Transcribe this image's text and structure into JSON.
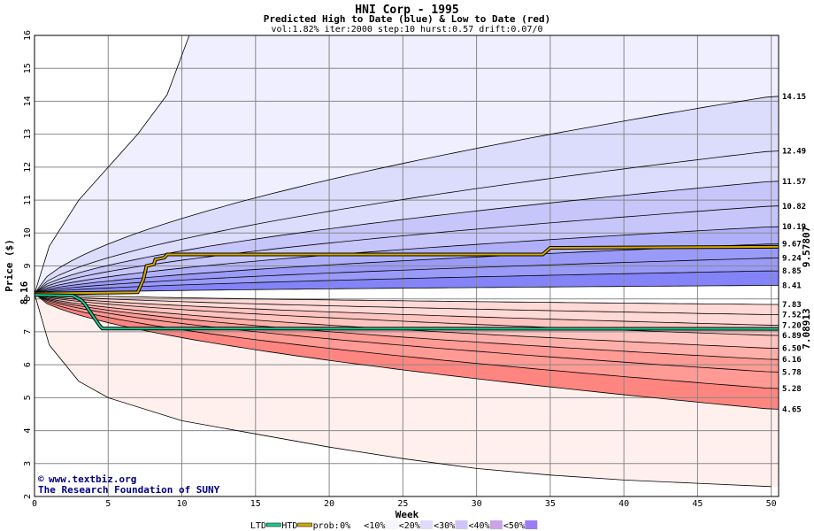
{
  "chart_data": {
    "type": "area",
    "title": "HNI Corp - 1995",
    "subtitle": "Predicted High to Date (blue) &  Low to Date (red)",
    "params": "vol:1.82% iter:2000 step:10 hurst:0.57 drift:0.07/0",
    "xlabel": "Week",
    "ylabel": "Price ($)",
    "xlim": [
      0,
      50.5
    ],
    "ylim": [
      2,
      16
    ],
    "x_ticks": [
      0,
      5,
      10,
      15,
      20,
      25,
      30,
      35,
      40,
      45,
      50
    ],
    "y_ticks": [
      2,
      3,
      4,
      5,
      6,
      7,
      8,
      9,
      10,
      11,
      12,
      13,
      14,
      15,
      16
    ],
    "grid": true,
    "start_price": "8.16",
    "high_bands_end": [
      14.15,
      12.49,
      11.57,
      10.82,
      10.19,
      9.67,
      9.24,
      8.85,
      8.41
    ],
    "low_bands_end": [
      7.83,
      7.52,
      7.2,
      6.89,
      6.5,
      6.16,
      5.78,
      5.28,
      4.65
    ],
    "high_end_labels": [
      "14.15",
      "12.49",
      "11.57",
      "10.82",
      "10.19",
      "9.67",
      "9.24",
      "8.85",
      "8.41"
    ],
    "low_end_labels": [
      "7.83",
      "7.52",
      "7.20",
      "6.89",
      "6.50",
      "6.16",
      "5.78",
      "5.28",
      "4.65"
    ],
    "outer_high": {
      "x": [
        0,
        1,
        3,
        5,
        7,
        9,
        10.5
      ],
      "y": [
        8.16,
        9.6,
        11.0,
        12.0,
        13.0,
        14.2,
        16.0
      ]
    },
    "outer_low": {
      "x": [
        0,
        1,
        3,
        5,
        10,
        15,
        20,
        25,
        30,
        35,
        40,
        45,
        50
      ],
      "y": [
        8.16,
        6.6,
        5.5,
        5.0,
        4.3,
        3.9,
        3.5,
        3.15,
        2.85,
        2.65,
        2.5,
        2.4,
        2.3
      ]
    },
    "series": [
      {
        "name": "HTD",
        "x": [
          0,
          7,
          7.4,
          7.6,
          8.1,
          8.2,
          8.8,
          9.0,
          34.5,
          35,
          50.5
        ],
        "y": [
          8.16,
          8.2,
          8.6,
          9.0,
          9.05,
          9.2,
          9.25,
          9.35,
          9.35,
          9.55,
          9.58
        ],
        "color": "#d4a800",
        "end_label": "9.57807"
      },
      {
        "name": "LTD",
        "x": [
          0,
          2.6,
          3.2,
          3.4,
          4.4,
          4.6,
          50.5
        ],
        "y": [
          8.12,
          8.1,
          7.95,
          7.85,
          7.2,
          7.1,
          7.09
        ],
        "color": "#20c890",
        "end_label": "7.08913"
      }
    ],
    "credits": [
      "www.textbiz.org",
      "The Research Foundation of SUNY"
    ],
    "legend": {
      "ltd": "LTD",
      "htd": "HTD",
      "prob": "prob:",
      "items": [
        "0%",
        "<10%",
        "<20%",
        "<30%",
        "<40%",
        "<50%"
      ],
      "colors": [
        "#ffffff",
        "#f6f4fe",
        "#e2dafc",
        "#d0c4f6",
        "#c8a4e6",
        "#9c7cf4"
      ]
    },
    "colors": {
      "high_fill": [
        "#efefff",
        "#dcdcfc",
        "#c6c6fb",
        "#b0b0fa",
        "#9a9af9",
        "#8484f8"
      ],
      "low_fill": [
        "#fff0ee",
        "#ffd9d6",
        "#ffc4c0",
        "#ffafaa",
        "#ff9a95",
        "#ff8580"
      ],
      "grid": "#888888"
    }
  }
}
